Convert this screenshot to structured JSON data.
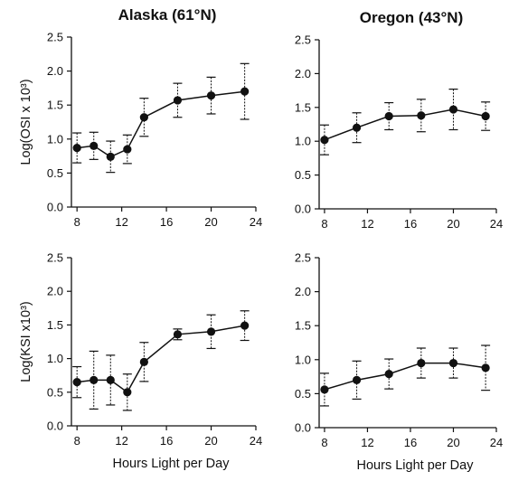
{
  "figure": {
    "col_titles": [
      "Alaska (61°N)",
      "Oregon (43°N)"
    ]
  },
  "chart_data": [
    {
      "type": "line",
      "title": "Alaska (61°N)",
      "ylabel": "Log(OSI x 10³)",
      "xlabel": "",
      "xlim": [
        7.5,
        24
      ],
      "ylim": [
        0,
        2.5
      ],
      "xticks": [
        8,
        12,
        16,
        20,
        24
      ],
      "yticks": [
        0.0,
        0.5,
        1.0,
        1.5,
        2.0,
        2.5
      ],
      "series": [
        {
          "x": [
            8,
            9.5,
            11,
            12.5,
            14,
            17,
            20,
            23
          ],
          "y": [
            0.87,
            0.9,
            0.74,
            0.85,
            1.32,
            1.57,
            1.64,
            1.7
          ],
          "err": [
            0.22,
            0.2,
            0.23,
            0.21,
            0.28,
            0.25,
            0.27,
            0.41
          ]
        }
      ]
    },
    {
      "type": "line",
      "title": "Oregon (43°N)",
      "ylabel": "",
      "xlabel": "",
      "xlim": [
        7.5,
        24
      ],
      "ylim": [
        0,
        2.5
      ],
      "xticks": [
        8,
        12,
        16,
        20,
        24
      ],
      "yticks": [
        0.0,
        0.5,
        1.0,
        1.5,
        2.0,
        2.5
      ],
      "series": [
        {
          "x": [
            8,
            11,
            14,
            17,
            20,
            23
          ],
          "y": [
            1.02,
            1.2,
            1.37,
            1.38,
            1.47,
            1.37
          ],
          "err": [
            0.22,
            0.22,
            0.2,
            0.24,
            0.3,
            0.21
          ]
        }
      ]
    },
    {
      "type": "line",
      "title": "",
      "ylabel": "Log(KSI x10³)",
      "xlabel": "Hours Light per Day",
      "xlim": [
        7.5,
        24
      ],
      "ylim": [
        0,
        2.5
      ],
      "xticks": [
        8,
        12,
        16,
        20,
        24
      ],
      "yticks": [
        0.0,
        0.5,
        1.0,
        1.5,
        2.0,
        2.5
      ],
      "series": [
        {
          "x": [
            8,
            9.5,
            11,
            12.5,
            14,
            17,
            20,
            23
          ],
          "y": [
            0.65,
            0.68,
            0.68,
            0.5,
            0.95,
            1.36,
            1.4,
            1.49
          ],
          "err": [
            0.23,
            0.43,
            0.37,
            0.27,
            0.29,
            0.08,
            0.25,
            0.22
          ]
        }
      ]
    },
    {
      "type": "line",
      "title": "",
      "ylabel": "",
      "xlabel": "Hours Light per Day",
      "xlim": [
        7.5,
        24
      ],
      "ylim": [
        0,
        2.5
      ],
      "xticks": [
        8,
        12,
        16,
        20,
        24
      ],
      "yticks": [
        0.0,
        0.5,
        1.0,
        1.5,
        2.0,
        2.5
      ],
      "series": [
        {
          "x": [
            8,
            11,
            14,
            17,
            20,
            23
          ],
          "y": [
            0.56,
            0.7,
            0.79,
            0.95,
            0.95,
            0.88
          ],
          "err": [
            0.24,
            0.28,
            0.22,
            0.22,
            0.22,
            0.33
          ]
        }
      ]
    }
  ]
}
